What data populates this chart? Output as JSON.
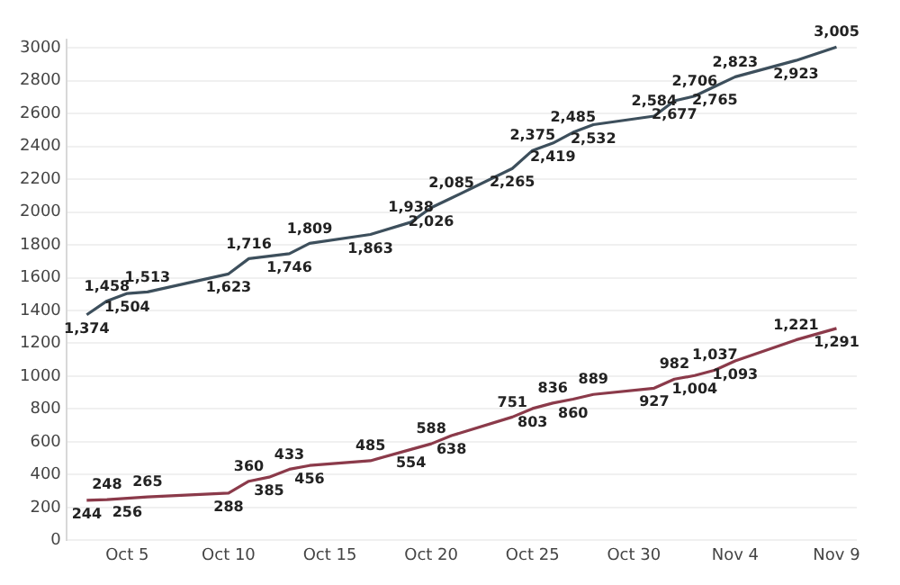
{
  "chart_data": {
    "type": "line",
    "xlim": [
      "--10-02",
      "--11-10"
    ],
    "xticks": [
      {
        "value": "--10-05",
        "label": "Oct 5"
      },
      {
        "value": "--10-10",
        "label": "Oct 10"
      },
      {
        "value": "--10-15",
        "label": "Oct 15"
      },
      {
        "value": "--10-20",
        "label": "Oct 20"
      },
      {
        "value": "--10-25",
        "label": "Oct 25"
      },
      {
        "value": "--10-30",
        "label": "Oct 30"
      },
      {
        "value": "--11-04",
        "label": "Nov 4"
      },
      {
        "value": "--11-09",
        "label": "Nov 9"
      }
    ],
    "ylim": [
      0,
      3050
    ],
    "yticks": [
      0,
      200,
      400,
      600,
      800,
      1000,
      1200,
      1400,
      1600,
      1800,
      2000,
      2200,
      2400,
      2600,
      2800,
      3000
    ],
    "grid": "y",
    "legend": false,
    "marker": "none",
    "line_style": "solid",
    "series": [
      {
        "color": "#3d4f5c",
        "x": [
          "--10-03",
          "--10-04",
          "--10-05",
          "--10-06",
          "--10-10",
          "--10-11",
          "--10-13",
          "--10-14",
          "--10-17",
          "--10-19",
          "--10-20",
          "--10-21",
          "--10-24",
          "--10-25",
          "--10-26",
          "--10-27",
          "--10-28",
          "--10-31",
          "--11-01",
          "--11-02",
          "--11-03",
          "--11-04",
          "--11-07",
          "--11-09"
        ],
        "values": [
          1374,
          1458,
          1504,
          1513,
          1623,
          1716,
          1746,
          1809,
          1863,
          1938,
          2026,
          2085,
          2265,
          2375,
          2419,
          2485,
          2532,
          2584,
          2677,
          2706,
          2765,
          2823,
          2923,
          3005
        ],
        "value_labels": [
          "1,374",
          "1,458",
          "1,504",
          "1,513",
          "1,623",
          "1,716",
          "1,746",
          "1,809",
          "1,863",
          "1,938",
          "2,026",
          "2,085",
          "2,265",
          "2,375",
          "2,419",
          "2,485",
          "2,532",
          "2,584",
          "2,677",
          "2,706",
          "2,765",
          "2,823",
          "2,923",
          "3,005"
        ]
      },
      {
        "color": "#8b3a4a",
        "x": [
          "--10-03",
          "--10-04",
          "--10-05",
          "--10-06",
          "--10-10",
          "--10-11",
          "--10-12",
          "--10-13",
          "--10-14",
          "--10-17",
          "--10-19",
          "--10-20",
          "--10-21",
          "--10-24",
          "--10-25",
          "--10-26",
          "--10-27",
          "--10-28",
          "--10-31",
          "--11-01",
          "--11-02",
          "--11-03",
          "--11-04",
          "--11-07",
          "--11-09"
        ],
        "values": [
          244,
          248,
          256,
          265,
          288,
          360,
          385,
          433,
          456,
          485,
          554,
          588,
          638,
          751,
          803,
          836,
          860,
          889,
          927,
          982,
          1004,
          1037,
          1093,
          1221,
          1291
        ],
        "value_labels": [
          "244",
          "248",
          "256",
          "265",
          "288",
          "360",
          "385",
          "433",
          "456",
          "485",
          "554",
          "588",
          "638",
          "751",
          "803",
          "836",
          "860",
          "889",
          "927",
          "982",
          "1,004",
          "1,037",
          "1,093",
          "1,221",
          "1,291"
        ]
      }
    ]
  }
}
